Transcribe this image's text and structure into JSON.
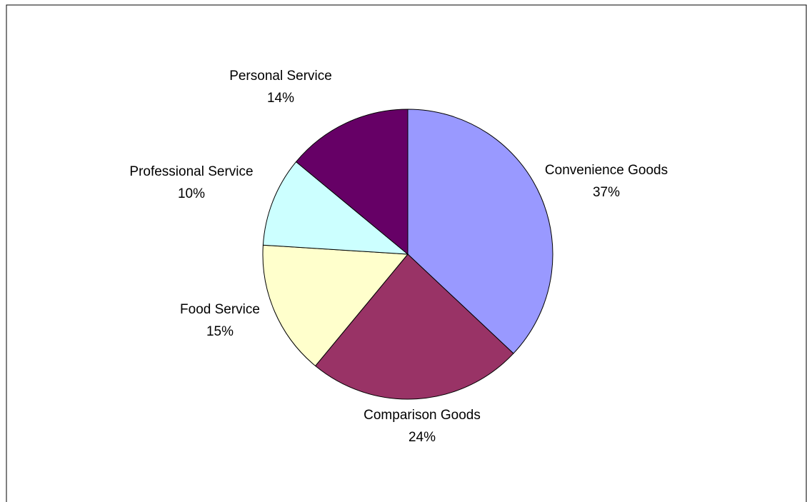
{
  "chart_data": {
    "type": "pie",
    "title": "",
    "slices": [
      {
        "label": "Convenience Goods",
        "value": 37,
        "value_label": "37%",
        "color": "#9999ff"
      },
      {
        "label": "Comparison Goods",
        "value": 24,
        "value_label": "24%",
        "color": "#993366"
      },
      {
        "label": "Food Service",
        "value": 15,
        "value_label": "15%",
        "color": "#ffffcc"
      },
      {
        "label": "Professional Service",
        "value": 10,
        "value_label": "10%",
        "color": "#ccffff"
      },
      {
        "label": "Personal Service",
        "value": 14,
        "value_label": "14%",
        "color": "#660066"
      }
    ],
    "legend": "none",
    "start_angle": "12 o'clock",
    "direction": "clockwise",
    "background": "#ffffff",
    "border_color": "#000000"
  }
}
